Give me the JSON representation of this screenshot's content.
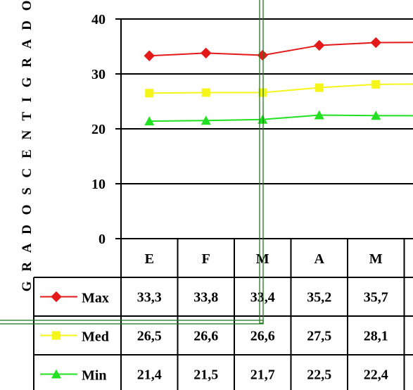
{
  "chart_data": {
    "type": "line",
    "ylabel": "G R A D O S   C E N T I G R A D O S",
    "xlabel": "",
    "title": "",
    "categories": [
      "E",
      "F",
      "M",
      "A",
      "M"
    ],
    "yticks": [
      0,
      10,
      20,
      30,
      40
    ],
    "ylim": [
      0,
      40
    ],
    "grid": true,
    "legend": "data-table",
    "series": [
      {
        "name": "Max",
        "values": [
          33.3,
          33.8,
          33.4,
          35.2,
          35.7
        ],
        "labels": [
          "33,3",
          "33,8",
          "33,4",
          "35,2",
          "35,7"
        ],
        "color": "#e41a1a",
        "marker": "diamond"
      },
      {
        "name": "Med",
        "values": [
          26.5,
          26.6,
          26.6,
          27.5,
          28.1
        ],
        "labels": [
          "26,5",
          "26,6",
          "26,6",
          "27,5",
          "28,1"
        ],
        "color": "#f5f51a",
        "marker": "square"
      },
      {
        "name": "Min",
        "values": [
          21.4,
          21.5,
          21.7,
          22.5,
          22.4
        ],
        "labels": [
          "21,4",
          "21,5",
          "21,7",
          "22,5",
          "22,4"
        ],
        "color": "#22e022",
        "marker": "triangle"
      }
    ],
    "overlay_color": "#1e7a1e"
  }
}
